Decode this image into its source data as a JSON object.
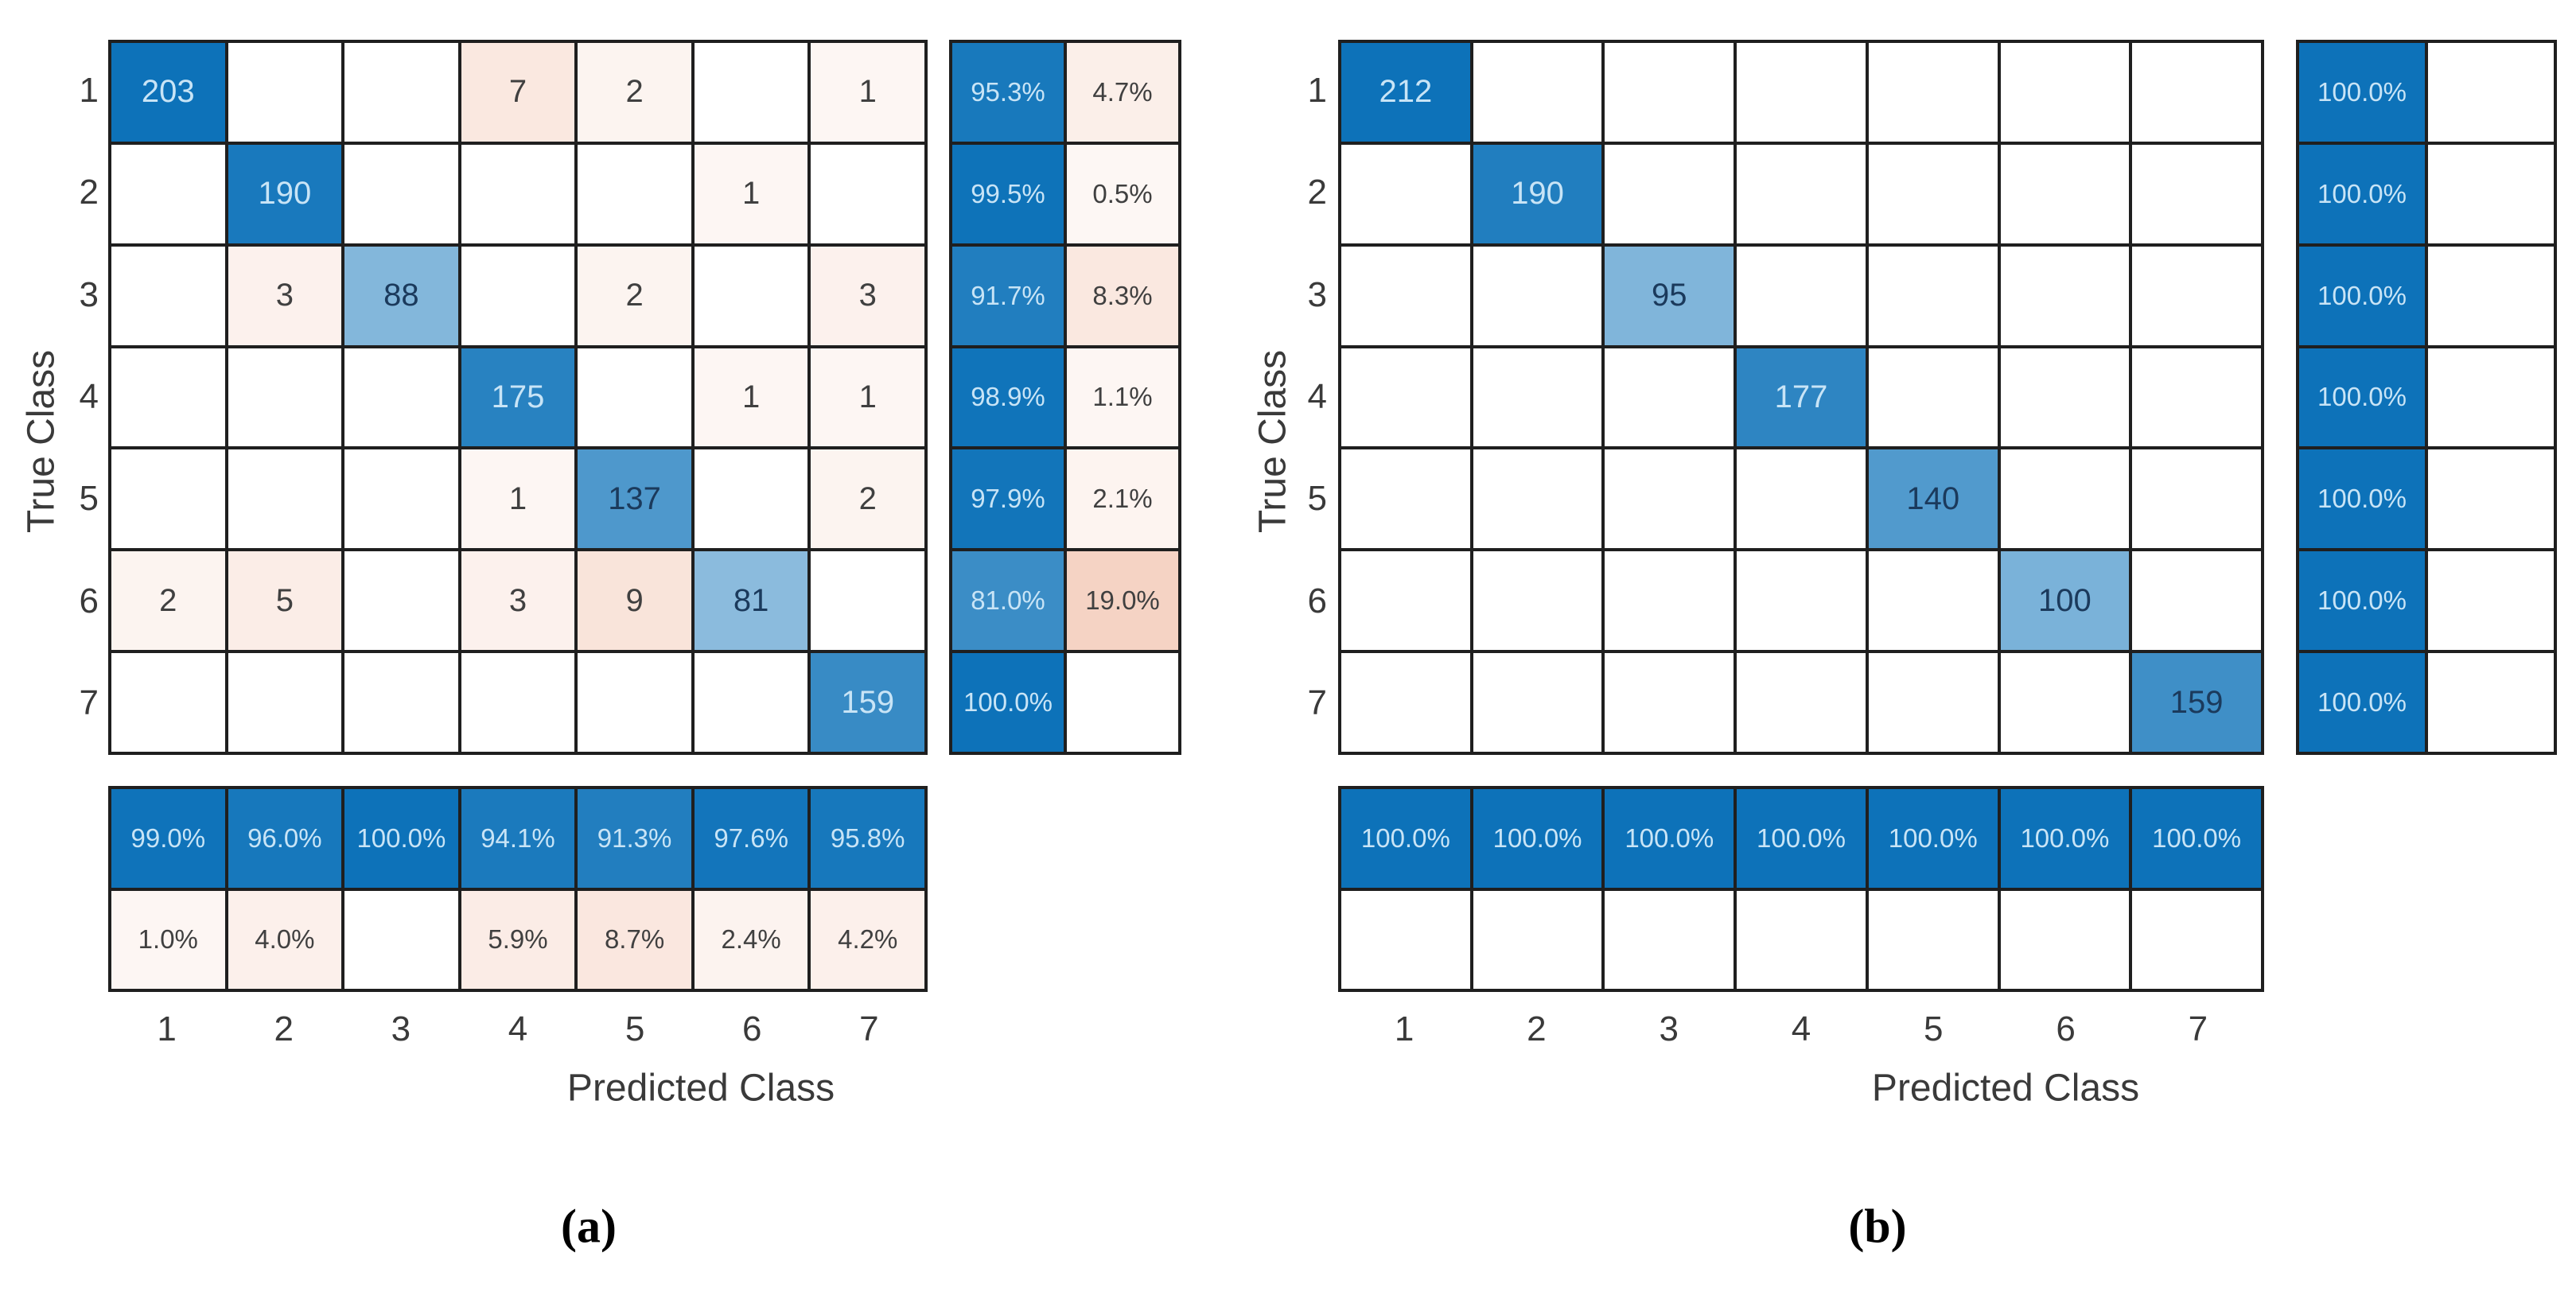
{
  "figure": {
    "type": "confusion-matrix-pair",
    "background": "#ffffff"
  },
  "colors": {
    "diagonal_blue": "#0d72b9",
    "off_diagonal_orange": "#d95319",
    "grid_line": "#1f1f1f",
    "axis_text": "#3a3a3a",
    "light_cell_text": "#c8e4f6",
    "dark_cell_text": "#1b3a5c",
    "off_diag_text": "#404040"
  },
  "chart_data": [
    {
      "type": "heatmap",
      "subtype": "confusion_matrix",
      "caption": "(a)",
      "xlabel": "Predicted Class",
      "ylabel": "True Class",
      "classes": [
        "1",
        "2",
        "3",
        "4",
        "5",
        "6",
        "7"
      ],
      "matrix": [
        [
          203,
          null,
          null,
          7,
          2,
          null,
          1
        ],
        [
          null,
          190,
          null,
          null,
          null,
          1,
          null
        ],
        [
          null,
          3,
          88,
          null,
          2,
          null,
          3
        ],
        [
          null,
          null,
          null,
          175,
          null,
          1,
          1
        ],
        [
          null,
          null,
          null,
          1,
          137,
          null,
          2
        ],
        [
          2,
          5,
          null,
          3,
          9,
          81,
          null
        ],
        [
          null,
          null,
          null,
          null,
          null,
          null,
          159
        ]
      ],
      "row_summary_pct": [
        [
          95.3,
          4.7
        ],
        [
          99.5,
          0.5
        ],
        [
          91.7,
          8.3
        ],
        [
          98.9,
          1.1
        ],
        [
          97.9,
          2.1
        ],
        [
          81.0,
          19.0
        ],
        [
          100.0,
          null
        ]
      ],
      "col_summary_pct": [
        [
          99.0,
          96.0,
          100.0,
          94.1,
          91.3,
          97.6,
          95.8
        ],
        [
          1.0,
          4.0,
          null,
          5.9,
          8.7,
          2.4,
          4.2
        ]
      ]
    },
    {
      "type": "heatmap",
      "subtype": "confusion_matrix",
      "caption": "(b)",
      "xlabel": "Predicted Class",
      "ylabel": "True Class",
      "classes": [
        "1",
        "2",
        "3",
        "4",
        "5",
        "6",
        "7"
      ],
      "matrix": [
        [
          212,
          null,
          null,
          null,
          null,
          null,
          null
        ],
        [
          null,
          190,
          null,
          null,
          null,
          null,
          null
        ],
        [
          null,
          null,
          95,
          null,
          null,
          null,
          null
        ],
        [
          null,
          null,
          null,
          177,
          null,
          null,
          null
        ],
        [
          null,
          null,
          null,
          null,
          140,
          null,
          null
        ],
        [
          null,
          null,
          null,
          null,
          null,
          100,
          null
        ],
        [
          null,
          null,
          null,
          null,
          null,
          null,
          159
        ]
      ],
      "row_summary_pct": [
        [
          100.0,
          null
        ],
        [
          100.0,
          null
        ],
        [
          100.0,
          null
        ],
        [
          100.0,
          null
        ],
        [
          100.0,
          null
        ],
        [
          100.0,
          null
        ],
        [
          100.0,
          null
        ]
      ],
      "col_summary_pct": [
        [
          100.0,
          100.0,
          100.0,
          100.0,
          100.0,
          100.0,
          100.0
        ],
        [
          null,
          null,
          null,
          null,
          null,
          null,
          null
        ]
      ]
    }
  ]
}
